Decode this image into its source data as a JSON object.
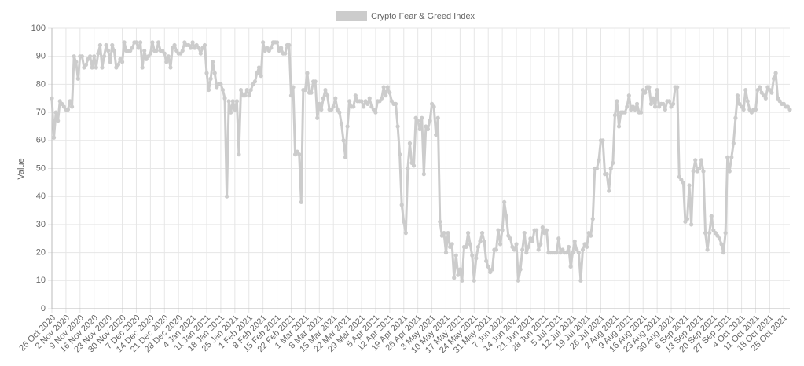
{
  "chart_data": {
    "type": "line",
    "y_label": "Value",
    "ylim": [
      0,
      100
    ],
    "yticks": [
      0,
      10,
      20,
      30,
      40,
      50,
      60,
      70,
      80,
      90,
      100
    ],
    "grid": true,
    "legend": "top",
    "categories": [
      "26 Oct 2020",
      null,
      null,
      null,
      null,
      null,
      null,
      "2 Nov 2020",
      null,
      null,
      null,
      null,
      null,
      null,
      "9 Nov 2020",
      null,
      null,
      null,
      null,
      null,
      null,
      "16 Nov 2020",
      null,
      null,
      null,
      null,
      null,
      null,
      "23 Nov 2020",
      null,
      null,
      null,
      null,
      null,
      null,
      "30 Nov 2020",
      null,
      null,
      null,
      null,
      null,
      null,
      "7 Dec 2020",
      null,
      null,
      null,
      null,
      null,
      null,
      "14 Dec 2020",
      null,
      null,
      null,
      null,
      null,
      null,
      "21 Dec 2020",
      null,
      null,
      null,
      null,
      null,
      null,
      "28 Dec 2020",
      null,
      null,
      null,
      null,
      null,
      null,
      "4 Jan 2021",
      null,
      null,
      null,
      null,
      null,
      null,
      "11 Jan 2021",
      null,
      null,
      null,
      null,
      null,
      null,
      "18 Jan 2021",
      null,
      null,
      null,
      null,
      null,
      null,
      "25 Jan 2021",
      null,
      null,
      null,
      null,
      null,
      null,
      "1 Feb 2021",
      null,
      null,
      null,
      null,
      null,
      null,
      "8 Feb 2021",
      null,
      null,
      null,
      null,
      null,
      null,
      "15 Feb 2021",
      null,
      null,
      null,
      null,
      null,
      null,
      "22 Feb 2021",
      null,
      null,
      null,
      null,
      null,
      null,
      "1 Mar 2021",
      null,
      null,
      null,
      null,
      null,
      null,
      "8 Mar 2021",
      null,
      null,
      null,
      null,
      null,
      null,
      "15 Mar 2021",
      null,
      null,
      null,
      null,
      null,
      null,
      "22 Mar 2021",
      null,
      null,
      null,
      null,
      null,
      null,
      "29 Mar 2021",
      null,
      null,
      null,
      null,
      null,
      null,
      "5 Apr 2021",
      null,
      null,
      null,
      null,
      null,
      null,
      "12 Apr 2021",
      null,
      null,
      null,
      null,
      null,
      null,
      "19 Apr 2021",
      null,
      null,
      null,
      null,
      null,
      null,
      "26 Apr 2021",
      null,
      null,
      null,
      null,
      null,
      null,
      "3 May 2021",
      null,
      null,
      null,
      null,
      null,
      null,
      "10 May 2021",
      null,
      null,
      null,
      null,
      null,
      null,
      "17 May 2021",
      null,
      null,
      null,
      null,
      null,
      null,
      "24 May 2021",
      null,
      null,
      null,
      null,
      null,
      null,
      "31 May 2021",
      null,
      null,
      null,
      null,
      null,
      null,
      "7 Jun 2021",
      null,
      null,
      null,
      null,
      null,
      null,
      "14 Jun 2021",
      null,
      null,
      null,
      null,
      null,
      null,
      "21 Jun 2021",
      null,
      null,
      null,
      null,
      null,
      null,
      "28 Jun 2021",
      null,
      null,
      null,
      null,
      null,
      null,
      "5 Jul 2021",
      null,
      null,
      null,
      null,
      null,
      null,
      "12 Jul 2021",
      null,
      null,
      null,
      null,
      null,
      null,
      "19 Jul 2021",
      null,
      null,
      null,
      null,
      null,
      null,
      "26 Jul 2021",
      null,
      null,
      null,
      null,
      null,
      null,
      "2 Aug 2021",
      null,
      null,
      null,
      null,
      null,
      null,
      "9 Aug 2021",
      null,
      null,
      null,
      null,
      null,
      null,
      "16 Aug 2021",
      null,
      null,
      null,
      null,
      null,
      null,
      "23 Aug 2021",
      null,
      null,
      null,
      null,
      null,
      null,
      "30 Aug 2021",
      null,
      null,
      null,
      null,
      null,
      null,
      "6 Sep 2021",
      null,
      null,
      null,
      null,
      null,
      null,
      "13 Sep 2021",
      null,
      null,
      null,
      null,
      null,
      null,
      "20 Sep 2021",
      null,
      null,
      null,
      null,
      null,
      null,
      "27 Sep 2021",
      null,
      null,
      null,
      null,
      null,
      null,
      "4 Oct 2021",
      null,
      null,
      null,
      null,
      null,
      null,
      "11 Oct 2021",
      null,
      null,
      null,
      null,
      null,
      null,
      "18 Oct 2021",
      null,
      null,
      null,
      null,
      null,
      null,
      "25 Oct 2021",
      null,
      null,
      null
    ],
    "series": [
      {
        "name": "Crypto Fear & Greed Index",
        "color": "#cccccc",
        "values": [
          75,
          61,
          70,
          67,
          74,
          73,
          72,
          71,
          71,
          74,
          72,
          90,
          88,
          82,
          90,
          90,
          86,
          87,
          89,
          90,
          86,
          90,
          86,
          91,
          94,
          86,
          90,
          94,
          92,
          88,
          94,
          92,
          86,
          87,
          89,
          88,
          95,
          92,
          92,
          92,
          93,
          95,
          95,
          93,
          95,
          86,
          92,
          89,
          90,
          91,
          95,
          92,
          92,
          95,
          92,
          92,
          91,
          88,
          90,
          86,
          93,
          94,
          92,
          91,
          91,
          92,
          95,
          94,
          94,
          93,
          95,
          93,
          94,
          93,
          91,
          93,
          94,
          84,
          78,
          82,
          88,
          84,
          79,
          80,
          80,
          78,
          75,
          40,
          74,
          70,
          74,
          71,
          74,
          55,
          78,
          76,
          76,
          78,
          76,
          78,
          80,
          81,
          84,
          86,
          83,
          95,
          92,
          93,
          92,
          93,
          95,
          95,
          95,
          92,
          93,
          91,
          91,
          94,
          94,
          76,
          79,
          55,
          56,
          55,
          38,
          78,
          78,
          84,
          77,
          77,
          81,
          81,
          68,
          73,
          71,
          75,
          78,
          76,
          71,
          71,
          72,
          75,
          71,
          70,
          66,
          60,
          54,
          65,
          74,
          72,
          72,
          76,
          74,
          74,
          74,
          72,
          74,
          73,
          75,
          72,
          71,
          70,
          74,
          74,
          75,
          79,
          76,
          79,
          77,
          74,
          73,
          73,
          65,
          55,
          37,
          31,
          27,
          50,
          59,
          52,
          51,
          68,
          67,
          64,
          68,
          48,
          65,
          64,
          67,
          73,
          72,
          62,
          68,
          31,
          26,
          27,
          20,
          27,
          22,
          23,
          11,
          19,
          12,
          14,
          10,
          22,
          22,
          27,
          23,
          19,
          10,
          18,
          22,
          24,
          27,
          24,
          17,
          15,
          13,
          14,
          21,
          21,
          28,
          23,
          28,
          38,
          33,
          26,
          25,
          22,
          21,
          23,
          10,
          14,
          21,
          27,
          20,
          22,
          25,
          24,
          28,
          28,
          21,
          23,
          29,
          27,
          28,
          20,
          20,
          20,
          20,
          20,
          25,
          20,
          21,
          20,
          20,
          22,
          15,
          20,
          24,
          21,
          20,
          10,
          21,
          23,
          22,
          27,
          26,
          32,
          50,
          50,
          53,
          60,
          60,
          48,
          48,
          42,
          50,
          52,
          69,
          74,
          65,
          70,
          70,
          70,
          72,
          76,
          71,
          72,
          71,
          73,
          70,
          70,
          78,
          77,
          79,
          79,
          73,
          75,
          72,
          78,
          72,
          73,
          73,
          71,
          74,
          74,
          72,
          73,
          79,
          79,
          47,
          46,
          45,
          31,
          32,
          44,
          30,
          49,
          53,
          49,
          50,
          53,
          49,
          27,
          21,
          27,
          33,
          28,
          27,
          26,
          25,
          23,
          20,
          27,
          54,
          49,
          54,
          59,
          68,
          76,
          73,
          72,
          71,
          78,
          74,
          71,
          70,
          71,
          71,
          78,
          79,
          77,
          76,
          75,
          79,
          78,
          77,
          82,
          84,
          75,
          74,
          73,
          73,
          72,
          72,
          71
        ]
      }
    ]
  }
}
